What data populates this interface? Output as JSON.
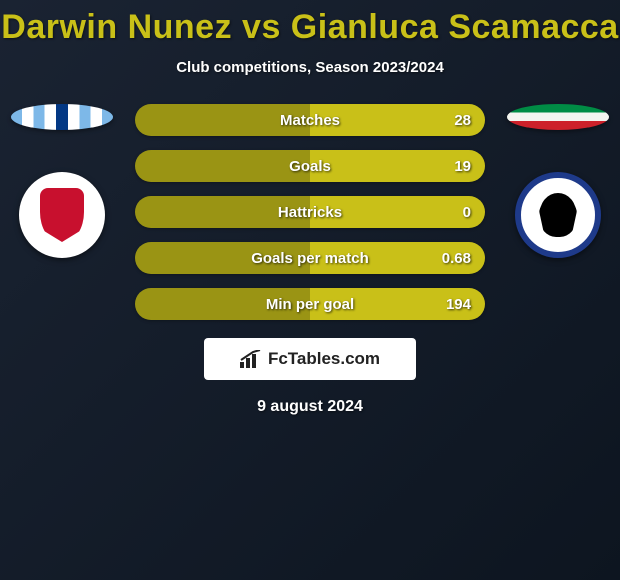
{
  "header": {
    "title": "Darwin Nunez vs Gianluca Scamacca",
    "subtitle": "Club competitions, Season 2023/2024"
  },
  "colors": {
    "accent": "#c9c018",
    "bar_left": "#9a9414",
    "bar_right": "#c9c018"
  },
  "players": {
    "left": {
      "club": "Liverpool",
      "country": "Uruguay"
    },
    "right": {
      "club": "Atalanta",
      "country": "Italy"
    }
  },
  "stats": [
    {
      "label": "Matches",
      "value": "28",
      "left_pct": 50
    },
    {
      "label": "Goals",
      "value": "19",
      "left_pct": 50
    },
    {
      "label": "Hattricks",
      "value": "0",
      "left_pct": 50
    },
    {
      "label": "Goals per match",
      "value": "0.68",
      "left_pct": 50
    },
    {
      "label": "Min per goal",
      "value": "194",
      "left_pct": 50
    }
  ],
  "branding": {
    "text": "FcTables.com"
  },
  "date": "9 august 2024"
}
